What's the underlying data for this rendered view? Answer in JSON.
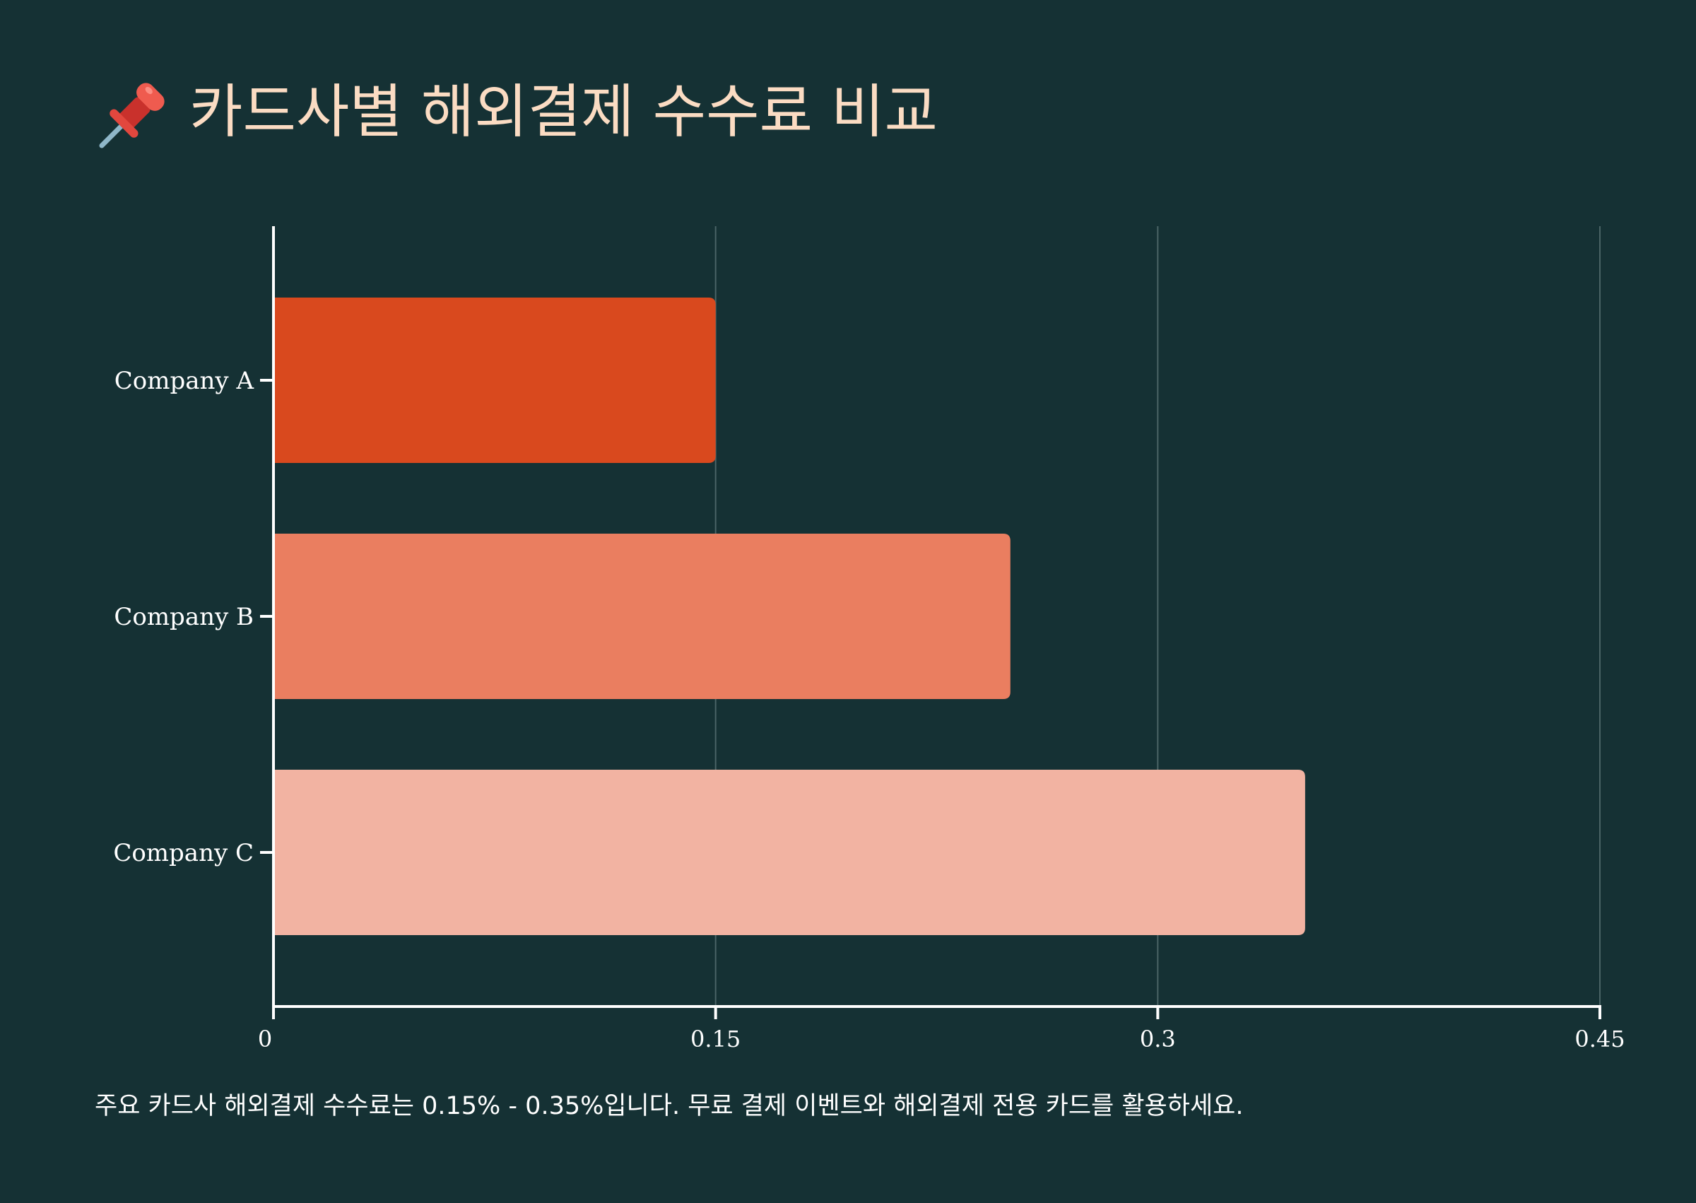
{
  "header": {
    "title": "카드사별 해외결제 수수료 비교",
    "icon": "pushpin-icon"
  },
  "chart_data": {
    "type": "bar",
    "orientation": "horizontal",
    "categories": [
      "Company A",
      "Company B",
      "Company C"
    ],
    "values": [
      0.15,
      0.25,
      0.35
    ],
    "colors": [
      "#d9491e",
      "#ea7e60",
      "#f2b3a2"
    ],
    "xlim": [
      0,
      0.45
    ],
    "xticks": [
      0,
      0.15,
      0.3,
      0.45
    ],
    "xtick_labels": [
      "0",
      "0.15",
      "0.3",
      "0.45"
    ],
    "title": "카드사별 해외결제 수수료 비교",
    "xlabel": "",
    "ylabel": "",
    "grid": "vertical"
  },
  "footnote": "주요 카드사 해외결제 수수료는 0.15% - 0.35%입니다. 무료 결제 이벤트와 해외결제 전용 카드를 활용하세요.",
  "colors": {
    "background": "#153134",
    "title": "#fbdcc3",
    "axis": "#ffffff",
    "grid": "#4a6466"
  }
}
